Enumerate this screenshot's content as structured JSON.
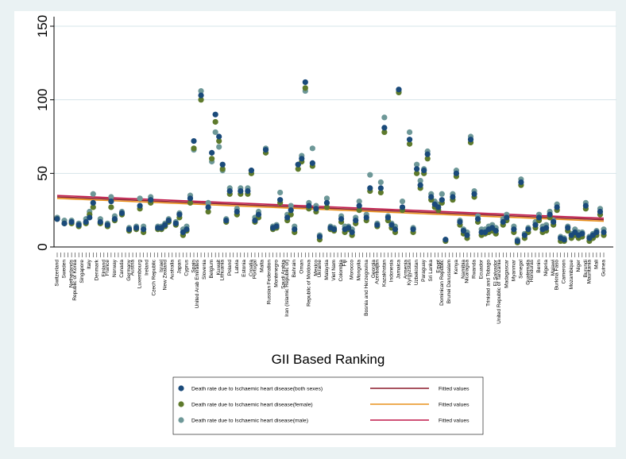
{
  "chart_data": {
    "type": "scatter",
    "xlabel": "GII Based Ranking",
    "ylabel": "",
    "ylim": [
      0,
      150
    ],
    "yticks": [
      0,
      50,
      100,
      150
    ],
    "grid": "horizontal",
    "legend_position": "bottom",
    "colors": {
      "both": "#1a4a7a",
      "female": "#5e7a2c",
      "male": "#6e9898",
      "fit_both": "#8b1a2b",
      "fit_female": "#e8901a",
      "fit_male": "#c0184a"
    },
    "categories": [
      "Switzerland",
      "Sweden",
      "Netherlands",
      "Republic of Korea",
      "Singapore",
      "Italy",
      "Denmark",
      "Finland",
      "France",
      "Norway",
      "Canada",
      "Germany",
      "Austria",
      "Luxembourg",
      "Ireland",
      "Czech Republic",
      "Israel",
      "New Zealand",
      "Australia",
      "Japan",
      "Cyprus",
      "Spain",
      "United Arab Emirates",
      "Slovenia",
      "Belgium",
      "Kuwait",
      "Lithuania",
      "Poland",
      "Latvia",
      "Estonia",
      "Croatia",
      "Portugal",
      "Malta",
      "Russian Federation",
      "Montenegro",
      "Saudi Arabia",
      "Iran (Islamic Republic of)",
      "Bahrain",
      "Oman",
      "Republic of Moldova",
      "Mexico",
      "Ukraine",
      "Malaysia",
      "Viet Nam",
      "Colombia",
      "Fiji",
      "Morocco",
      "Mongolia",
      "Bosnia and Herzegovina",
      "Georgia",
      "Azerbaijan",
      "Kazakhstan",
      "Indonesia",
      "Jamaica",
      "Armenia",
      "Kyrgyzstan",
      "Uzbekistan",
      "Paraguay",
      "Sri Lanka",
      "Egypt",
      "Dominican Republic",
      "Brunei Darussalam",
      "Kenya",
      "Namibia",
      "Nicaragua",
      "Rwanda",
      "Ecuador",
      "Trinidad and Tobago",
      "El Salvador",
      "United Republic of Tanzania",
      "Madagascar",
      "Myanmar",
      "Senegal",
      "Guatemala",
      "Honduras",
      "Benin",
      "Nigeria",
      "Malawi",
      "Burkina Faso",
      "Cameroon",
      "Mozambique",
      "Niger",
      "Burundi",
      "Mauritania",
      "Mali",
      "Guinea"
    ],
    "series": [
      {
        "name": "Death rate due to Ischaemic heart disease(both sexes)",
        "values": [
          19,
          16,
          17,
          15,
          17,
          20,
          30,
          17,
          15,
          31,
          19,
          23,
          12,
          13,
          28,
          12,
          32,
          13,
          13,
          15,
          18,
          16,
          22,
          10,
          12,
          33,
          72,
          103,
          27,
          64,
          90,
          75,
          56,
          18,
          38,
          24,
          38,
          38,
          52,
          18,
          22,
          66,
          13,
          14,
          32,
          20,
          25,
          12,
          56,
          60,
          112,
          28,
          57,
          26,
          7,
          30,
          13,
          12,
          19,
          12,
          13,
          10,
          18,
          28,
          20,
          40,
          15,
          40,
          81,
          20,
          15,
          12,
          107,
          27,
          73,
          12,
          53,
          42,
          52,
          63,
          34,
          29,
          27,
          32,
          5,
          34,
          50,
          17,
          11,
          8,
          73,
          36,
          19,
          10,
          10,
          12,
          13,
          11,
          17,
          20,
          12,
          4,
          44,
          8,
          12,
          15,
          20,
          12,
          13,
          22,
          17,
          27,
          6,
          5,
          13,
          8,
          10,
          8,
          9,
          28,
          6,
          8,
          10,
          24,
          10
        ],
        "x": [
          1,
          3,
          5,
          7,
          9,
          10,
          11,
          13,
          15,
          16,
          17,
          19,
          21,
          23,
          24,
          25,
          27,
          29,
          30,
          31,
          32,
          34,
          35,
          36,
          37,
          38,
          39,
          41,
          43,
          44,
          45,
          46,
          47,
          48,
          49,
          51,
          52,
          54,
          55,
          56,
          57,
          59,
          61,
          62,
          63,
          65,
          66,
          67,
          68,
          69,
          70,
          71,
          72,
          73,
          74,
          76,
          77,
          78,
          80,
          81,
          82,
          83,
          84,
          85,
          87,
          88,
          90,
          91,
          92,
          93,
          94,
          95,
          96,
          97,
          99,
          100,
          101,
          102,
          103,
          104,
          105,
          106,
          107,
          108,
          109,
          111,
          112,
          113,
          114,
          115,
          116,
          117,
          118,
          119,
          120,
          121,
          122,
          123,
          125,
          126,
          128,
          129,
          130,
          131,
          132,
          134,
          135,
          136,
          137,
          138,
          139,
          140,
          141,
          142,
          143,
          144,
          145,
          146,
          147,
          148,
          149,
          150,
          151,
          152,
          153
        ]
      },
      {
        "name": "Death rate due to Ischaemic heart disease(female)",
        "values": [
          19,
          16,
          16,
          14,
          16,
          22,
          27,
          16,
          14,
          27,
          18,
          22,
          11,
          12,
          26,
          10,
          30,
          12,
          12,
          14,
          17,
          15,
          20,
          8,
          11,
          30,
          67,
          100,
          24,
          60,
          85,
          72,
          53,
          17,
          36,
          22,
          36,
          36,
          50,
          17,
          20,
          64,
          12,
          13,
          30,
          18,
          22,
          10,
          53,
          58,
          108,
          26,
          55,
          24,
          5,
          27,
          12,
          11,
          17,
          10,
          12,
          8,
          16,
          25,
          18,
          38,
          14,
          37,
          78,
          18,
          13,
          10,
          105,
          25,
          70,
          10,
          50,
          40,
          50,
          60,
          32,
          27,
          25,
          30,
          4,
          32,
          48,
          15,
          9,
          6,
          71,
          34,
          17,
          8,
          9,
          10,
          11,
          9,
          15,
          18,
          10,
          3,
          42,
          6,
          10,
          13,
          18,
          10,
          11,
          20,
          15,
          25,
          4,
          4,
          11,
          6,
          8,
          6,
          7,
          26,
          4,
          6,
          8,
          22,
          8
        ],
        "x": [
          1,
          3,
          5,
          7,
          9,
          10,
          11,
          13,
          15,
          16,
          17,
          19,
          21,
          23,
          24,
          25,
          27,
          29,
          30,
          31,
          32,
          34,
          35,
          36,
          37,
          38,
          39,
          41,
          43,
          44,
          45,
          46,
          47,
          48,
          49,
          51,
          52,
          54,
          55,
          56,
          57,
          59,
          61,
          62,
          63,
          65,
          66,
          67,
          68,
          69,
          70,
          71,
          72,
          73,
          74,
          76,
          77,
          78,
          80,
          81,
          82,
          83,
          84,
          85,
          87,
          88,
          90,
          91,
          92,
          93,
          94,
          95,
          96,
          97,
          99,
          100,
          101,
          102,
          103,
          104,
          105,
          106,
          107,
          108,
          109,
          111,
          112,
          113,
          114,
          115,
          116,
          117,
          118,
          119,
          120,
          121,
          122,
          123,
          125,
          126,
          128,
          129,
          130,
          131,
          132,
          134,
          135,
          136,
          137,
          138,
          139,
          140,
          141,
          142,
          143,
          144,
          145,
          146,
          147,
          148,
          149,
          150,
          151,
          152,
          153
        ]
      },
      {
        "name": "Death rate due to Ischaemic heart disease(male)",
        "values": [
          20,
          18,
          18,
          16,
          19,
          24,
          36,
          19,
          16,
          34,
          21,
          24,
          13,
          14,
          33,
          14,
          34,
          14,
          14,
          16,
          19,
          17,
          23,
          12,
          14,
          35,
          66,
          106,
          30,
          58,
          78,
          68,
          52,
          19,
          40,
          26,
          40,
          40,
          52,
          20,
          24,
          67,
          14,
          15,
          37,
          22,
          28,
          14,
          56,
          62,
          106,
          30,
          67,
          28,
          8,
          33,
          14,
          13,
          21,
          14,
          14,
          12,
          20,
          31,
          22,
          49,
          16,
          44,
          88,
          21,
          16,
          14,
          106,
          31,
          78,
          13,
          56,
          45,
          53,
          65,
          36,
          31,
          29,
          36,
          5,
          36,
          52,
          18,
          12,
          10,
          75,
          38,
          21,
          12,
          12,
          14,
          15,
          13,
          19,
          22,
          14,
          5,
          46,
          9,
          13,
          17,
          22,
          14,
          15,
          24,
          18,
          29,
          7,
          6,
          14,
          9,
          12,
          10,
          10,
          30,
          7,
          9,
          11,
          26,
          12
        ],
        "x": [
          1,
          3,
          5,
          7,
          9,
          10,
          11,
          13,
          15,
          16,
          17,
          19,
          21,
          23,
          24,
          25,
          27,
          29,
          30,
          31,
          32,
          34,
          35,
          36,
          37,
          38,
          39,
          41,
          43,
          44,
          45,
          46,
          47,
          48,
          49,
          51,
          52,
          54,
          55,
          56,
          57,
          59,
          61,
          62,
          63,
          65,
          66,
          67,
          68,
          69,
          70,
          71,
          72,
          73,
          74,
          76,
          77,
          78,
          80,
          81,
          82,
          83,
          84,
          85,
          87,
          88,
          90,
          91,
          92,
          93,
          94,
          95,
          96,
          97,
          99,
          100,
          101,
          102,
          103,
          104,
          105,
          106,
          107,
          108,
          109,
          111,
          112,
          113,
          114,
          115,
          116,
          117,
          118,
          119,
          120,
          121,
          122,
          123,
          125,
          126,
          128,
          129,
          130,
          131,
          132,
          134,
          135,
          136,
          137,
          138,
          139,
          140,
          141,
          142,
          143,
          144,
          145,
          146,
          147,
          148,
          149,
          150,
          151,
          152,
          153
        ]
      }
    ],
    "fitted": [
      {
        "name": "Fitted values",
        "color": "#8b1a2b",
        "start": 34,
        "end": 18.5
      },
      {
        "name": "Fitted values",
        "color": "#e8901a",
        "start": 33,
        "end": 17.5
      },
      {
        "name": "Fitted values",
        "color": "#c0184a",
        "start": 35,
        "end": 19.5
      }
    ],
    "x_count": 153
  }
}
